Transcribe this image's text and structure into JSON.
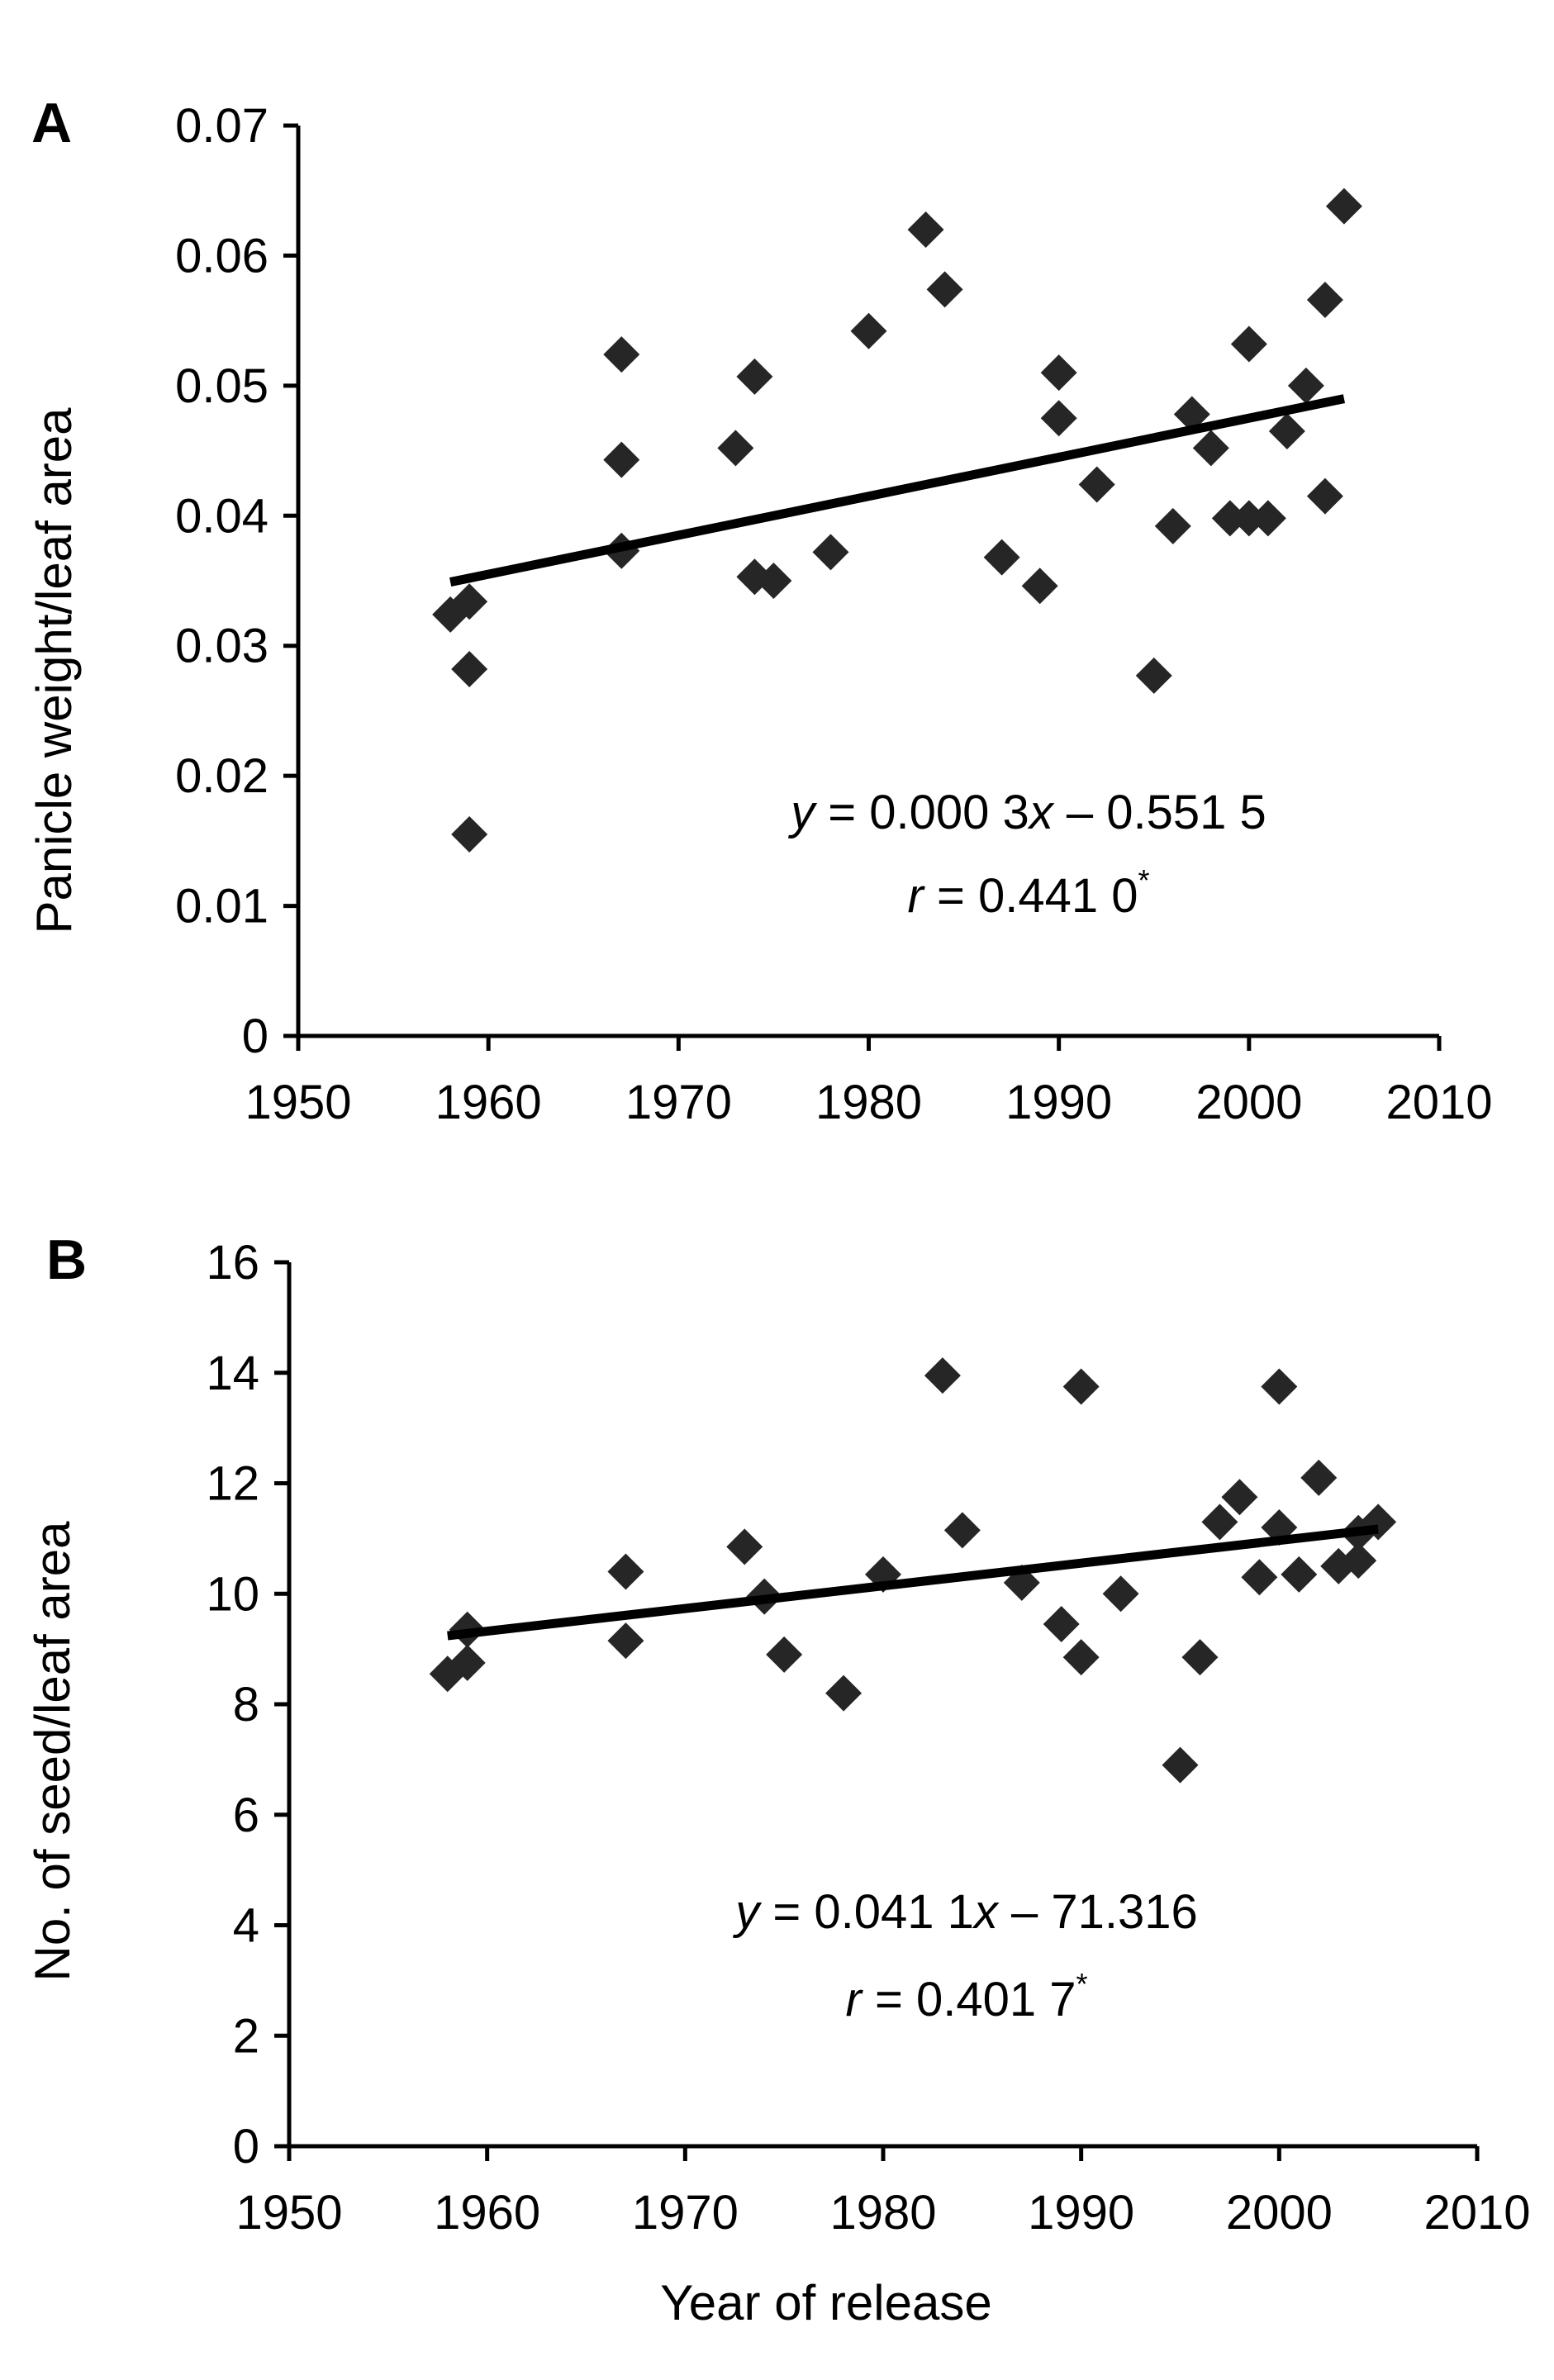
{
  "chart_data": [
    {
      "panel": "A",
      "type": "scatter",
      "xlabel": "",
      "ylabel": "Panicle weight/leaf area",
      "xlim": [
        1950,
        2010
      ],
      "ylim": [
        0,
        0.07
      ],
      "x_ticks": [
        "1950",
        "1960",
        "1970",
        "1980",
        "1990",
        "2000",
        "2010"
      ],
      "y_ticks": [
        "0",
        "0.01",
        "0.02",
        "0.03",
        "0.04",
        "0.05",
        "0.06",
        "0.07"
      ],
      "points": [
        [
          1958,
          0.0324
        ],
        [
          1959,
          0.0334
        ],
        [
          1959,
          0.0282
        ],
        [
          1959,
          0.0155
        ],
        [
          1967,
          0.0524
        ],
        [
          1967,
          0.0443
        ],
        [
          1967,
          0.0373
        ],
        [
          1973,
          0.0452
        ],
        [
          1974,
          0.0507
        ],
        [
          1974,
          0.0353
        ],
        [
          1975,
          0.035
        ],
        [
          1978,
          0.0372
        ],
        [
          1980,
          0.0542
        ],
        [
          1983,
          0.062
        ],
        [
          1984,
          0.0574
        ],
        [
          1987,
          0.0368
        ],
        [
          1989,
          0.0346
        ],
        [
          1990,
          0.051
        ],
        [
          1990,
          0.0475
        ],
        [
          1992,
          0.0424
        ],
        [
          1995,
          0.0277
        ],
        [
          1996,
          0.0392
        ],
        [
          1997,
          0.0478
        ],
        [
          1998,
          0.0452
        ],
        [
          1999,
          0.0398
        ],
        [
          2000,
          0.0532
        ],
        [
          2000,
          0.0398
        ],
        [
          2001,
          0.0398
        ],
        [
          2002,
          0.0465
        ],
        [
          2003,
          0.05
        ],
        [
          2004,
          0.0566
        ],
        [
          2004,
          0.0415
        ],
        [
          2005,
          0.0638
        ]
      ],
      "fit_line": {
        "x": [
          1958,
          2005
        ],
        "y": [
          0.0349,
          0.049
        ]
      },
      "equation": {
        "y": "y",
        "eq": " = 0.000 3",
        "x": "x",
        "rest": " – 0.551 5"
      },
      "r_text": {
        "r": "r",
        "eq": " = 0.441 0",
        "sup": "*"
      }
    },
    {
      "panel": "B",
      "type": "scatter",
      "xlabel": "Year of release",
      "ylabel": "No. of seed/leaf area",
      "xlim": [
        1950,
        2010
      ],
      "ylim": [
        0,
        16
      ],
      "x_ticks": [
        "1950",
        "1960",
        "1970",
        "1980",
        "1990",
        "2000",
        "2010"
      ],
      "y_ticks": [
        "0",
        "2",
        "4",
        "6",
        "8",
        "10",
        "12",
        "14",
        "16"
      ],
      "points": [
        [
          1958,
          8.55
        ],
        [
          1959,
          9.35
        ],
        [
          1959,
          8.75
        ],
        [
          1967,
          10.4
        ],
        [
          1967,
          9.15
        ],
        [
          1973,
          10.85
        ],
        [
          1974,
          9.95
        ],
        [
          1975,
          8.9
        ],
        [
          1978,
          8.2
        ],
        [
          1980,
          10.35
        ],
        [
          1983,
          13.95
        ],
        [
          1984,
          11.15
        ],
        [
          1987,
          10.2
        ],
        [
          1989,
          9.45
        ],
        [
          1990,
          13.75
        ],
        [
          1990,
          8.85
        ],
        [
          1992,
          10.0
        ],
        [
          1995,
          6.9
        ],
        [
          1996,
          8.85
        ],
        [
          1997,
          11.3
        ],
        [
          1998,
          11.75
        ],
        [
          1999,
          10.3
        ],
        [
          2000,
          13.75
        ],
        [
          2000,
          11.2
        ],
        [
          2001,
          10.35
        ],
        [
          2002,
          12.1
        ],
        [
          2003,
          10.5
        ],
        [
          2004,
          11.1
        ],
        [
          2004,
          10.6
        ],
        [
          2005,
          11.3
        ]
      ],
      "fit_line": {
        "x": [
          1958,
          2005
        ],
        "y": [
          9.24,
          11.17
        ]
      },
      "equation": {
        "y": "y",
        "eq": " = 0.041 1",
        "x": "x",
        "rest": " – 71.316"
      },
      "r_text": {
        "r": "r",
        "eq": " = 0.401 7",
        "sup": "*"
      }
    }
  ]
}
